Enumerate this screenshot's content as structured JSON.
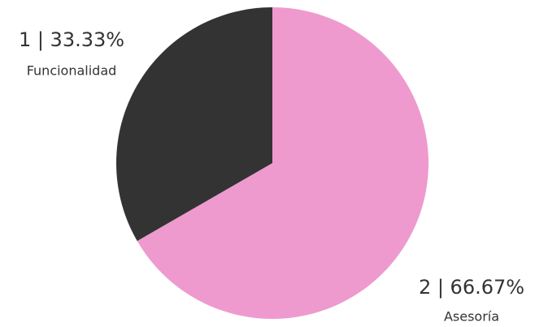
{
  "chart_data": {
    "type": "pie",
    "categories": [
      "Funcionalidad",
      "Asesoría"
    ],
    "values": [
      1,
      2
    ],
    "value_labels": [
      "1 | 33.33%",
      "2 | 66.67%"
    ],
    "colors": [
      "#333333",
      "#ee9ace"
    ]
  }
}
